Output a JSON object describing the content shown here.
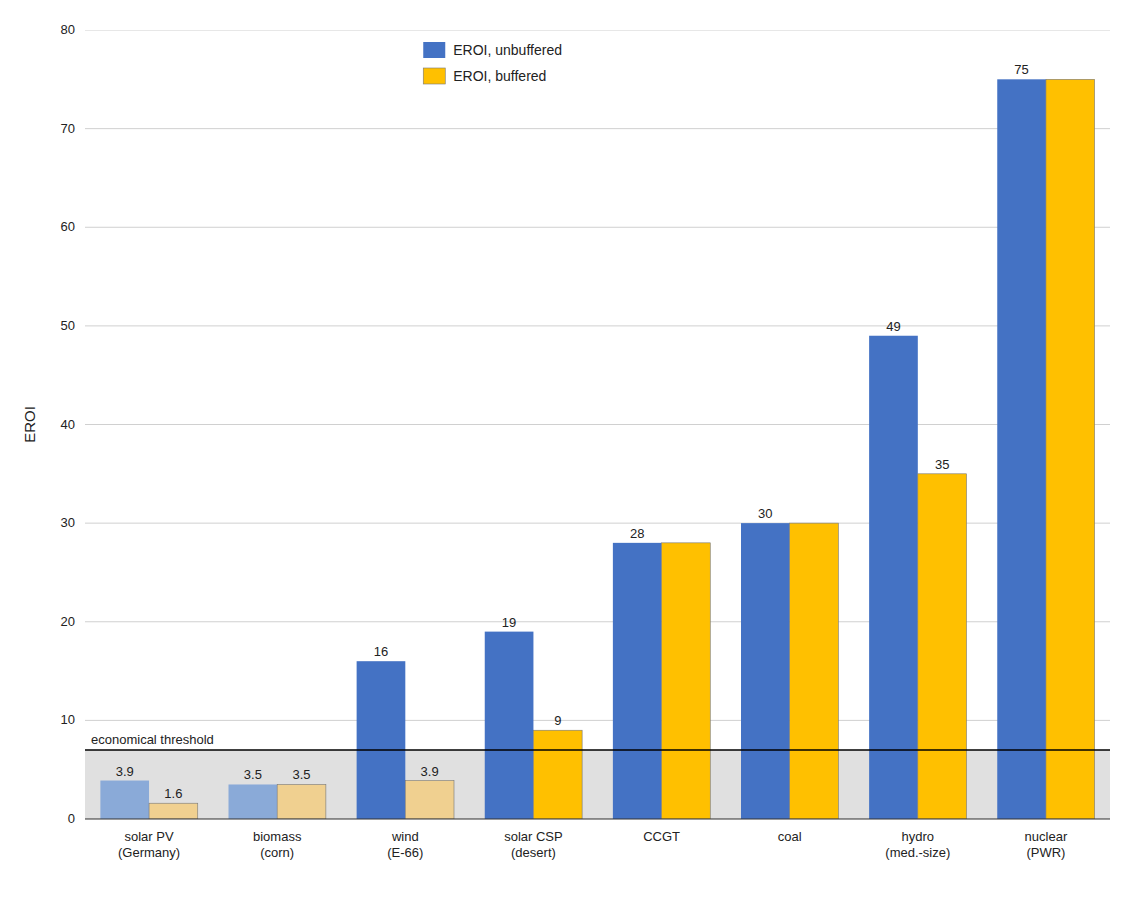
{
  "chart_data": {
    "type": "bar",
    "y_label": "EROI",
    "categories": [
      "solar PV\n(Germany)",
      "biomass\n(corn)",
      "wind\n(E-66)",
      "solar CSP\n(desert)",
      "CCGT",
      "coal",
      "hydro\n(med.-size)",
      "nuclear\n(PWR)"
    ],
    "series": [
      {
        "name": "EROI, unbuffered",
        "color": "#4472C4",
        "colors": [
          "#8aaad8",
          "#8aaad8",
          "#4472C4",
          "#4472C4",
          "#4472C4",
          "#4472C4",
          "#4472C4",
          "#4472C4"
        ],
        "values": [
          3.9,
          3.5,
          16,
          19,
          28,
          30,
          49,
          75
        ]
      },
      {
        "name": "EROI, buffered",
        "color": "#FFC000",
        "colors": [
          "#f0d090",
          "#f0d090",
          "#f0d090",
          "#FFC000",
          "#FFC000",
          "#FFC000",
          "#FFC000",
          "#FFC000"
        ],
        "values": [
          1.6,
          3.5,
          3.9,
          9,
          28,
          30,
          35,
          75
        ],
        "value_labels": [
          "1.6",
          "3.5",
          "3.9",
          "9",
          null,
          null,
          "35",
          null
        ]
      }
    ],
    "annotations": [
      {
        "text": "economical threshold",
        "y": 7,
        "color": "#e0e0e0"
      }
    ],
    "ylim": [
      0,
      80
    ],
    "yticks": [
      0,
      10,
      20,
      30,
      40,
      50,
      60,
      70,
      80
    ],
    "grid": true,
    "legend": "upper center",
    "data_labels": true
  }
}
